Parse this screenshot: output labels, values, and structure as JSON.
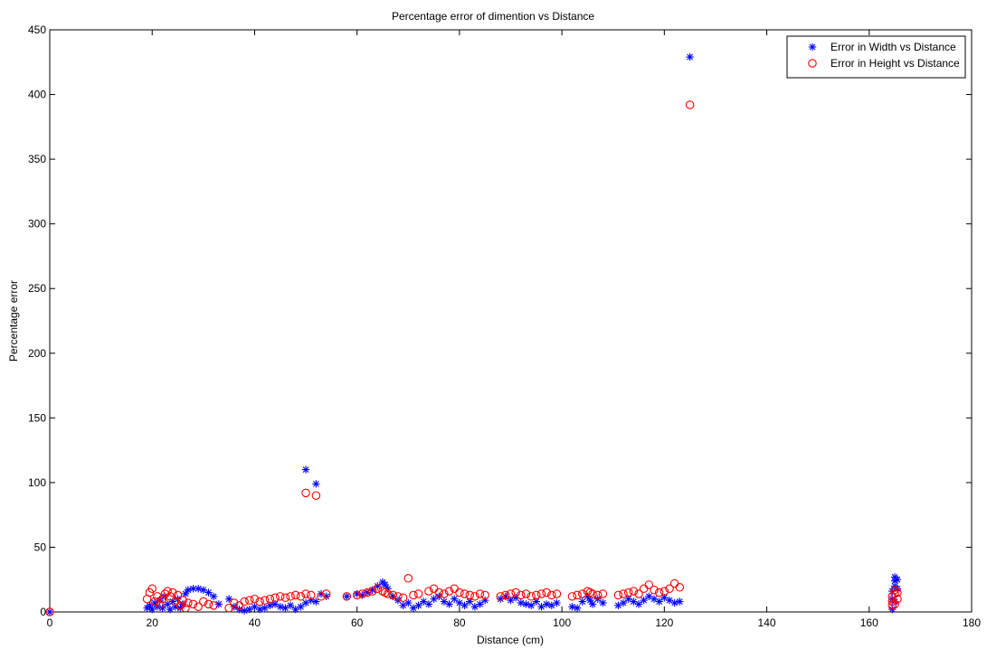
{
  "chart_data": {
    "type": "scatter",
    "title": "Percentage error of dimention vs Distance",
    "xlabel": "Distance (cm)",
    "ylabel": "Percentage error",
    "xlim": [
      0,
      180
    ],
    "ylim": [
      0,
      450
    ],
    "xticks": [
      0,
      20,
      40,
      60,
      80,
      100,
      120,
      140,
      160,
      180
    ],
    "yticks": [
      0,
      50,
      100,
      150,
      200,
      250,
      300,
      350,
      400,
      450
    ],
    "grid": false,
    "legend_position": "top-right",
    "series": [
      {
        "name": "Error in Width vs Distance",
        "marker": "asterisk",
        "color": "#0000ff",
        "points": [
          [
            0,
            0
          ],
          [
            19,
            3
          ],
          [
            19.5,
            5
          ],
          [
            20,
            2
          ],
          [
            20.5,
            7
          ],
          [
            21,
            4
          ],
          [
            21.5,
            9
          ],
          [
            22,
            3
          ],
          [
            22.5,
            12
          ],
          [
            23,
            6
          ],
          [
            23.5,
            2
          ],
          [
            24,
            8
          ],
          [
            24.5,
            4
          ],
          [
            25,
            10
          ],
          [
            25.5,
            3
          ],
          [
            26,
            6
          ],
          [
            26.5,
            14
          ],
          [
            27,
            17
          ],
          [
            28,
            18
          ],
          [
            29,
            18
          ],
          [
            30,
            17
          ],
          [
            31,
            15
          ],
          [
            32,
            12
          ],
          [
            33,
            6
          ],
          [
            35,
            10
          ],
          [
            36,
            4
          ],
          [
            37,
            2
          ],
          [
            38,
            1
          ],
          [
            39,
            2
          ],
          [
            40,
            4
          ],
          [
            41,
            2
          ],
          [
            42,
            3
          ],
          [
            43,
            5
          ],
          [
            44,
            6
          ],
          [
            45,
            4
          ],
          [
            46,
            3
          ],
          [
            47,
            5
          ],
          [
            48,
            2
          ],
          [
            49,
            4
          ],
          [
            50,
            7
          ],
          [
            51,
            9
          ],
          [
            52,
            8
          ],
          [
            53,
            14
          ],
          [
            54,
            12
          ],
          [
            50,
            110
          ],
          [
            52,
            99
          ],
          [
            58,
            12
          ],
          [
            60,
            14
          ],
          [
            61,
            13
          ],
          [
            62,
            15
          ],
          [
            63,
            17
          ],
          [
            64,
            20
          ],
          [
            65,
            23
          ],
          [
            65.5,
            21
          ],
          [
            66,
            18
          ],
          [
            67,
            12
          ],
          [
            68,
            9
          ],
          [
            69,
            5
          ],
          [
            70,
            7
          ],
          [
            71,
            3
          ],
          [
            72,
            5
          ],
          [
            73,
            8
          ],
          [
            74,
            6
          ],
          [
            75,
            10
          ],
          [
            76,
            12
          ],
          [
            77,
            8
          ],
          [
            78,
            6
          ],
          [
            79,
            10
          ],
          [
            80,
            7
          ],
          [
            81,
            5
          ],
          [
            82,
            8
          ],
          [
            83,
            4
          ],
          [
            84,
            6
          ],
          [
            85,
            9
          ],
          [
            88,
            10
          ],
          [
            89,
            12
          ],
          [
            90,
            9
          ],
          [
            91,
            11
          ],
          [
            92,
            7
          ],
          [
            93,
            6
          ],
          [
            94,
            5
          ],
          [
            95,
            8
          ],
          [
            96,
            4
          ],
          [
            97,
            6
          ],
          [
            98,
            5
          ],
          [
            99,
            7
          ],
          [
            102,
            4
          ],
          [
            103,
            3
          ],
          [
            104,
            8
          ],
          [
            105,
            12
          ],
          [
            105.5,
            9
          ],
          [
            106,
            6
          ],
          [
            107,
            10
          ],
          [
            108,
            7
          ],
          [
            111,
            5
          ],
          [
            112,
            7
          ],
          [
            113,
            10
          ],
          [
            114,
            8
          ],
          [
            115,
            6
          ],
          [
            116,
            9
          ],
          [
            117,
            12
          ],
          [
            118,
            10
          ],
          [
            119,
            8
          ],
          [
            120,
            11
          ],
          [
            121,
            9
          ],
          [
            122,
            7
          ],
          [
            123,
            8
          ],
          [
            125,
            429
          ],
          [
            164.5,
            2
          ],
          [
            164.5,
            10
          ],
          [
            164.5,
            16
          ],
          [
            165,
            20
          ],
          [
            165,
            24
          ],
          [
            165,
            27
          ],
          [
            165.5,
            25
          ],
          [
            165.5,
            18
          ],
          [
            165,
            8
          ]
        ]
      },
      {
        "name": "Error in Height vs Distance",
        "marker": "circle",
        "color": "#ff0000",
        "points": [
          [
            0,
            0
          ],
          [
            19,
            10
          ],
          [
            19.5,
            15
          ],
          [
            20,
            18
          ],
          [
            20.5,
            8
          ],
          [
            21,
            12
          ],
          [
            21.5,
            6
          ],
          [
            22,
            10
          ],
          [
            22.5,
            14
          ],
          [
            23,
            16
          ],
          [
            23.5,
            12
          ],
          [
            24,
            15
          ],
          [
            24.5,
            8
          ],
          [
            25,
            13
          ],
          [
            25.5,
            5
          ],
          [
            26,
            9
          ],
          [
            26.5,
            3
          ],
          [
            27,
            7
          ],
          [
            28,
            6
          ],
          [
            29,
            4
          ],
          [
            30,
            8
          ],
          [
            31,
            6
          ],
          [
            32,
            5
          ],
          [
            35,
            3
          ],
          [
            36,
            7
          ],
          [
            37,
            5
          ],
          [
            38,
            8
          ],
          [
            39,
            9
          ],
          [
            40,
            10
          ],
          [
            41,
            8
          ],
          [
            42,
            9
          ],
          [
            43,
            10
          ],
          [
            44,
            11
          ],
          [
            45,
            12
          ],
          [
            46,
            11
          ],
          [
            47,
            12
          ],
          [
            48,
            13
          ],
          [
            49,
            12
          ],
          [
            50,
            14
          ],
          [
            51,
            13
          ],
          [
            53,
            12
          ],
          [
            54,
            14
          ],
          [
            50,
            92
          ],
          [
            52,
            90
          ],
          [
            58,
            12
          ],
          [
            60,
            13
          ],
          [
            61,
            14
          ],
          [
            62,
            15
          ],
          [
            63,
            16
          ],
          [
            64,
            18
          ],
          [
            65,
            16
          ],
          [
            65.5,
            15
          ],
          [
            66,
            14
          ],
          [
            67,
            13
          ],
          [
            68,
            12
          ],
          [
            69,
            11
          ],
          [
            70,
            26
          ],
          [
            71,
            13
          ],
          [
            72,
            14
          ],
          [
            74,
            16
          ],
          [
            75,
            18
          ],
          [
            76,
            15
          ],
          [
            77,
            14
          ],
          [
            78,
            16
          ],
          [
            79,
            18
          ],
          [
            80,
            15
          ],
          [
            81,
            14
          ],
          [
            82,
            13
          ],
          [
            83,
            12
          ],
          [
            84,
            14
          ],
          [
            85,
            13
          ],
          [
            88,
            12
          ],
          [
            89,
            13
          ],
          [
            90,
            14
          ],
          [
            91,
            15
          ],
          [
            92,
            13
          ],
          [
            93,
            14
          ],
          [
            94,
            12
          ],
          [
            95,
            13
          ],
          [
            96,
            14
          ],
          [
            97,
            15
          ],
          [
            98,
            13
          ],
          [
            99,
            14
          ],
          [
            102,
            12
          ],
          [
            103,
            13
          ],
          [
            104,
            14
          ],
          [
            105,
            16
          ],
          [
            105.5,
            15
          ],
          [
            106,
            14
          ],
          [
            107,
            13
          ],
          [
            108,
            14
          ],
          [
            111,
            13
          ],
          [
            112,
            14
          ],
          [
            113,
            15
          ],
          [
            114,
            16
          ],
          [
            115,
            14
          ],
          [
            116,
            18
          ],
          [
            117,
            21
          ],
          [
            118,
            17
          ],
          [
            119,
            15
          ],
          [
            120,
            16
          ],
          [
            121,
            18
          ],
          [
            122,
            22
          ],
          [
            123,
            19
          ],
          [
            125,
            392
          ],
          [
            164.5,
            5
          ],
          [
            164.5,
            8
          ],
          [
            164.5,
            12
          ],
          [
            165,
            14
          ],
          [
            165,
            17
          ],
          [
            165,
            6
          ],
          [
            165.5,
            10
          ],
          [
            165.5,
            15
          ]
        ]
      }
    ]
  }
}
